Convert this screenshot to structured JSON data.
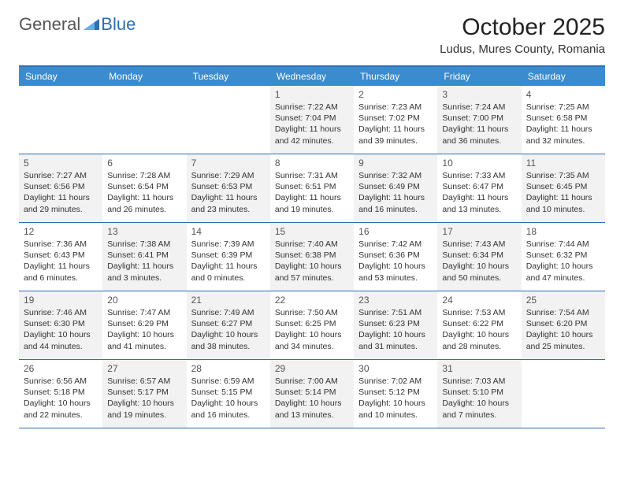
{
  "brand": {
    "part1": "General",
    "part2": "Blue"
  },
  "title": "October 2025",
  "location": "Ludus, Mures County, Romania",
  "colors": {
    "header_bg": "#3b8bcf",
    "border": "#2d6fb5",
    "shaded_bg": "#f2f2f2",
    "text": "#333333",
    "logo_gray": "#555555",
    "logo_blue": "#2d6fb5"
  },
  "typography": {
    "title_fontsize": 30,
    "location_fontsize": 15,
    "weekday_fontsize": 12,
    "daynum_fontsize": 12,
    "body_fontsize": 10.5
  },
  "layout": {
    "columns": 7,
    "rows": 5
  },
  "weekdays": [
    "Sunday",
    "Monday",
    "Tuesday",
    "Wednesday",
    "Thursday",
    "Friday",
    "Saturday"
  ],
  "weeks": [
    [
      {
        "empty": true
      },
      {
        "empty": true
      },
      {
        "empty": true
      },
      {
        "day": 1,
        "shaded": true,
        "sunrise": "Sunrise: 7:22 AM",
        "sunset": "Sunset: 7:04 PM",
        "daylight1": "Daylight: 11 hours",
        "daylight2": "and 42 minutes."
      },
      {
        "day": 2,
        "shaded": false,
        "sunrise": "Sunrise: 7:23 AM",
        "sunset": "Sunset: 7:02 PM",
        "daylight1": "Daylight: 11 hours",
        "daylight2": "and 39 minutes."
      },
      {
        "day": 3,
        "shaded": true,
        "sunrise": "Sunrise: 7:24 AM",
        "sunset": "Sunset: 7:00 PM",
        "daylight1": "Daylight: 11 hours",
        "daylight2": "and 36 minutes."
      },
      {
        "day": 4,
        "shaded": false,
        "sunrise": "Sunrise: 7:25 AM",
        "sunset": "Sunset: 6:58 PM",
        "daylight1": "Daylight: 11 hours",
        "daylight2": "and 32 minutes."
      }
    ],
    [
      {
        "day": 5,
        "shaded": true,
        "sunrise": "Sunrise: 7:27 AM",
        "sunset": "Sunset: 6:56 PM",
        "daylight1": "Daylight: 11 hours",
        "daylight2": "and 29 minutes."
      },
      {
        "day": 6,
        "shaded": false,
        "sunrise": "Sunrise: 7:28 AM",
        "sunset": "Sunset: 6:54 PM",
        "daylight1": "Daylight: 11 hours",
        "daylight2": "and 26 minutes."
      },
      {
        "day": 7,
        "shaded": true,
        "sunrise": "Sunrise: 7:29 AM",
        "sunset": "Sunset: 6:53 PM",
        "daylight1": "Daylight: 11 hours",
        "daylight2": "and 23 minutes."
      },
      {
        "day": 8,
        "shaded": false,
        "sunrise": "Sunrise: 7:31 AM",
        "sunset": "Sunset: 6:51 PM",
        "daylight1": "Daylight: 11 hours",
        "daylight2": "and 19 minutes."
      },
      {
        "day": 9,
        "shaded": true,
        "sunrise": "Sunrise: 7:32 AM",
        "sunset": "Sunset: 6:49 PM",
        "daylight1": "Daylight: 11 hours",
        "daylight2": "and 16 minutes."
      },
      {
        "day": 10,
        "shaded": false,
        "sunrise": "Sunrise: 7:33 AM",
        "sunset": "Sunset: 6:47 PM",
        "daylight1": "Daylight: 11 hours",
        "daylight2": "and 13 minutes."
      },
      {
        "day": 11,
        "shaded": true,
        "sunrise": "Sunrise: 7:35 AM",
        "sunset": "Sunset: 6:45 PM",
        "daylight1": "Daylight: 11 hours",
        "daylight2": "and 10 minutes."
      }
    ],
    [
      {
        "day": 12,
        "shaded": false,
        "sunrise": "Sunrise: 7:36 AM",
        "sunset": "Sunset: 6:43 PM",
        "daylight1": "Daylight: 11 hours",
        "daylight2": "and 6 minutes."
      },
      {
        "day": 13,
        "shaded": true,
        "sunrise": "Sunrise: 7:38 AM",
        "sunset": "Sunset: 6:41 PM",
        "daylight1": "Daylight: 11 hours",
        "daylight2": "and 3 minutes."
      },
      {
        "day": 14,
        "shaded": false,
        "sunrise": "Sunrise: 7:39 AM",
        "sunset": "Sunset: 6:39 PM",
        "daylight1": "Daylight: 11 hours",
        "daylight2": "and 0 minutes."
      },
      {
        "day": 15,
        "shaded": true,
        "sunrise": "Sunrise: 7:40 AM",
        "sunset": "Sunset: 6:38 PM",
        "daylight1": "Daylight: 10 hours",
        "daylight2": "and 57 minutes."
      },
      {
        "day": 16,
        "shaded": false,
        "sunrise": "Sunrise: 7:42 AM",
        "sunset": "Sunset: 6:36 PM",
        "daylight1": "Daylight: 10 hours",
        "daylight2": "and 53 minutes."
      },
      {
        "day": 17,
        "shaded": true,
        "sunrise": "Sunrise: 7:43 AM",
        "sunset": "Sunset: 6:34 PM",
        "daylight1": "Daylight: 10 hours",
        "daylight2": "and 50 minutes."
      },
      {
        "day": 18,
        "shaded": false,
        "sunrise": "Sunrise: 7:44 AM",
        "sunset": "Sunset: 6:32 PM",
        "daylight1": "Daylight: 10 hours",
        "daylight2": "and 47 minutes."
      }
    ],
    [
      {
        "day": 19,
        "shaded": true,
        "sunrise": "Sunrise: 7:46 AM",
        "sunset": "Sunset: 6:30 PM",
        "daylight1": "Daylight: 10 hours",
        "daylight2": "and 44 minutes."
      },
      {
        "day": 20,
        "shaded": false,
        "sunrise": "Sunrise: 7:47 AM",
        "sunset": "Sunset: 6:29 PM",
        "daylight1": "Daylight: 10 hours",
        "daylight2": "and 41 minutes."
      },
      {
        "day": 21,
        "shaded": true,
        "sunrise": "Sunrise: 7:49 AM",
        "sunset": "Sunset: 6:27 PM",
        "daylight1": "Daylight: 10 hours",
        "daylight2": "and 38 minutes."
      },
      {
        "day": 22,
        "shaded": false,
        "sunrise": "Sunrise: 7:50 AM",
        "sunset": "Sunset: 6:25 PM",
        "daylight1": "Daylight: 10 hours",
        "daylight2": "and 34 minutes."
      },
      {
        "day": 23,
        "shaded": true,
        "sunrise": "Sunrise: 7:51 AM",
        "sunset": "Sunset: 6:23 PM",
        "daylight1": "Daylight: 10 hours",
        "daylight2": "and 31 minutes."
      },
      {
        "day": 24,
        "shaded": false,
        "sunrise": "Sunrise: 7:53 AM",
        "sunset": "Sunset: 6:22 PM",
        "daylight1": "Daylight: 10 hours",
        "daylight2": "and 28 minutes."
      },
      {
        "day": 25,
        "shaded": true,
        "sunrise": "Sunrise: 7:54 AM",
        "sunset": "Sunset: 6:20 PM",
        "daylight1": "Daylight: 10 hours",
        "daylight2": "and 25 minutes."
      }
    ],
    [
      {
        "day": 26,
        "shaded": false,
        "sunrise": "Sunrise: 6:56 AM",
        "sunset": "Sunset: 5:18 PM",
        "daylight1": "Daylight: 10 hours",
        "daylight2": "and 22 minutes."
      },
      {
        "day": 27,
        "shaded": true,
        "sunrise": "Sunrise: 6:57 AM",
        "sunset": "Sunset: 5:17 PM",
        "daylight1": "Daylight: 10 hours",
        "daylight2": "and 19 minutes."
      },
      {
        "day": 28,
        "shaded": false,
        "sunrise": "Sunrise: 6:59 AM",
        "sunset": "Sunset: 5:15 PM",
        "daylight1": "Daylight: 10 hours",
        "daylight2": "and 16 minutes."
      },
      {
        "day": 29,
        "shaded": true,
        "sunrise": "Sunrise: 7:00 AM",
        "sunset": "Sunset: 5:14 PM",
        "daylight1": "Daylight: 10 hours",
        "daylight2": "and 13 minutes."
      },
      {
        "day": 30,
        "shaded": false,
        "sunrise": "Sunrise: 7:02 AM",
        "sunset": "Sunset: 5:12 PM",
        "daylight1": "Daylight: 10 hours",
        "daylight2": "and 10 minutes."
      },
      {
        "day": 31,
        "shaded": true,
        "sunrise": "Sunrise: 7:03 AM",
        "sunset": "Sunset: 5:10 PM",
        "daylight1": "Daylight: 10 hours",
        "daylight2": "and 7 minutes."
      },
      {
        "empty": true
      }
    ]
  ]
}
